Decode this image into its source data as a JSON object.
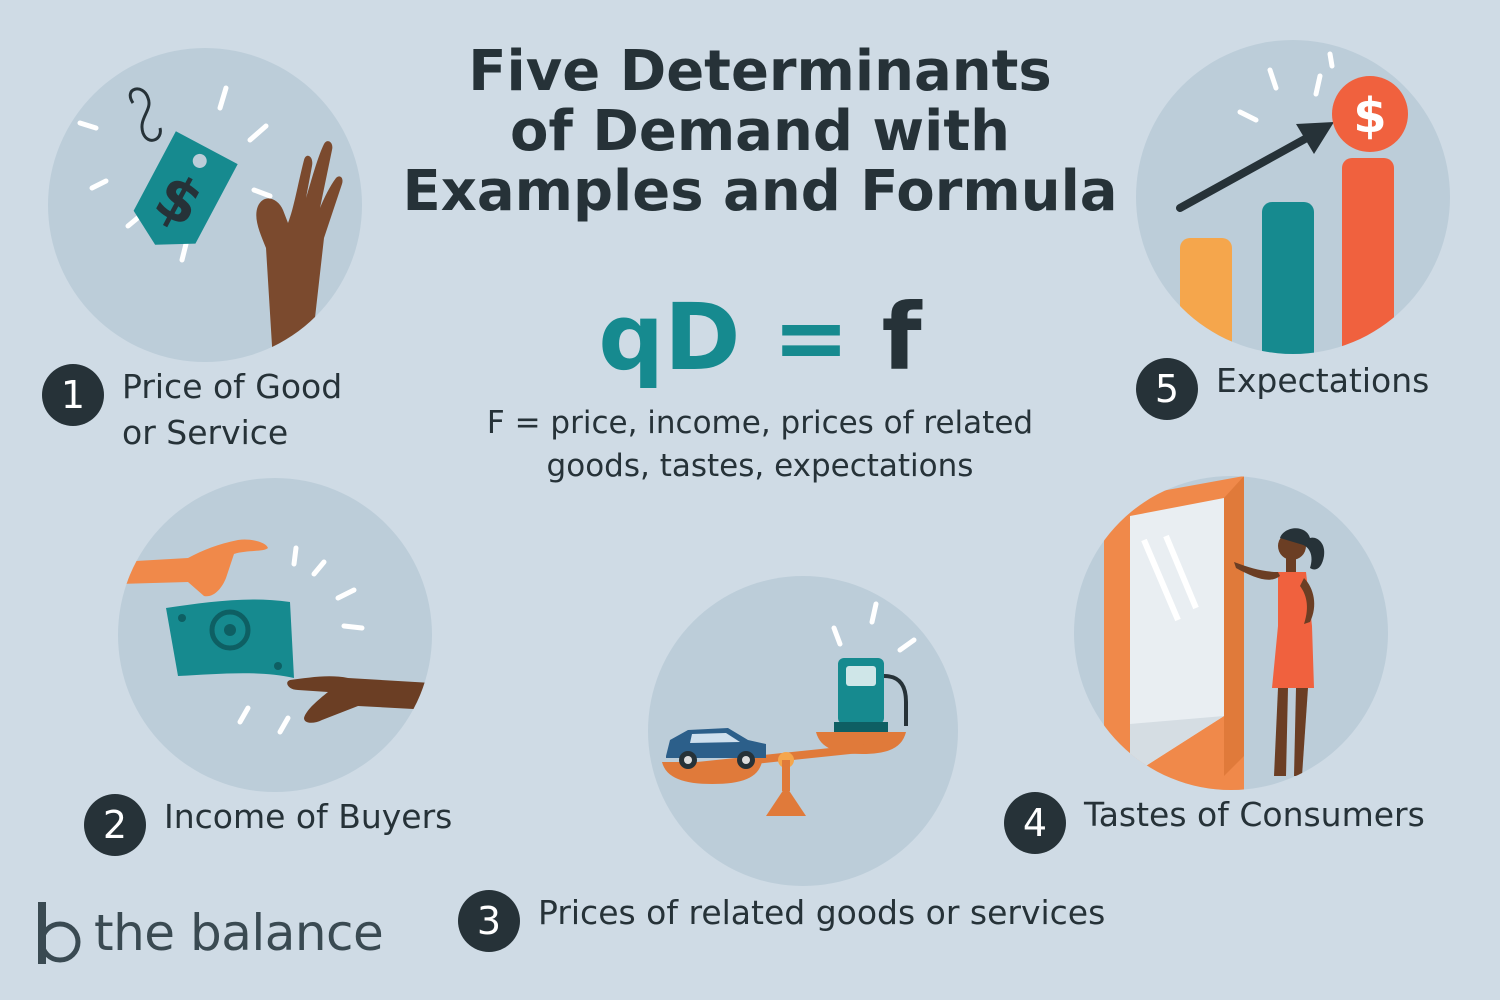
{
  "title": {
    "line1": "Five Determinants",
    "line2": "of Demand with",
    "line3": "Examples and Formula"
  },
  "formula": {
    "lhs": "qD",
    "eq": "=",
    "rhs": "f",
    "description_line1": "F = price, income, prices of related",
    "description_line2": "goods, tastes, expectations"
  },
  "determinants": [
    {
      "number": "1",
      "label": "Price of Good or Service",
      "icon": "price-tag-icon"
    },
    {
      "number": "2",
      "label": "Income of Buyers",
      "icon": "money-handoff-icon"
    },
    {
      "number": "3",
      "label": "Prices of related goods or services",
      "icon": "balance-scale-icon"
    },
    {
      "number": "4",
      "label": "Tastes of Consumers",
      "icon": "shopping-window-icon"
    },
    {
      "number": "5",
      "label": "Expectations",
      "icon": "growth-chart-icon"
    }
  ],
  "brand": {
    "name": "the balance"
  },
  "colors": {
    "background": "#cfdbe5",
    "circle": "#bccdd9",
    "teal": "#168a8f",
    "dark": "#263238",
    "orange": "#f0894a",
    "red": "#f0613e",
    "yellow": "#f5a64c"
  }
}
